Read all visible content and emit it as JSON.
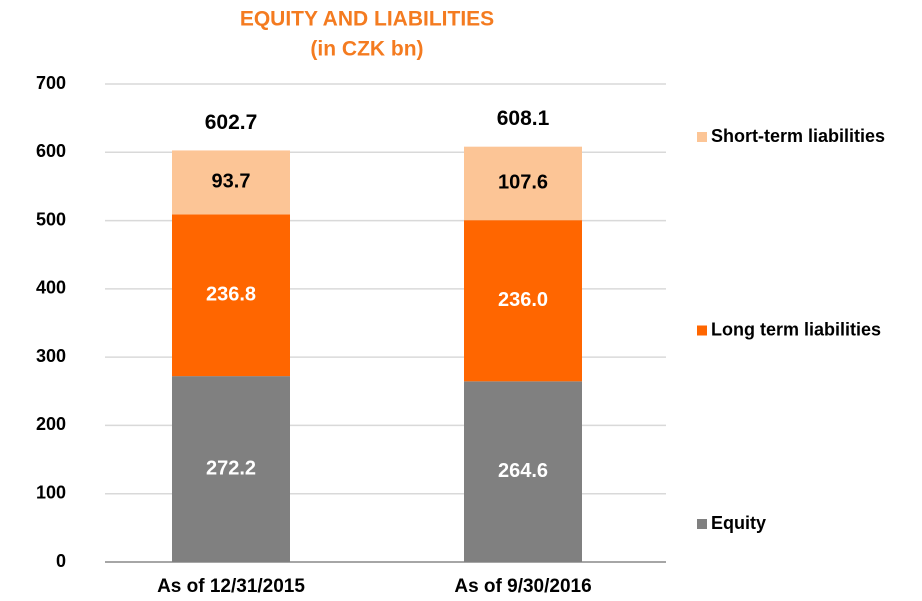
{
  "chart_data": {
    "type": "stacked_bar",
    "title": "EQUITY AND LIABILITIES",
    "subtitle": "(in CZK bn)",
    "categories": [
      "As of 12/31/2015",
      "As of 9/30/2016"
    ],
    "series": [
      {
        "name": "Equity",
        "color": "#808080",
        "label_color": "#ffffff",
        "values": [
          272.2,
          264.6
        ],
        "value_labels": [
          "272.2",
          "264.6"
        ]
      },
      {
        "name": "Long term liabilities",
        "color": "#ff6600",
        "label_color": "#ffffff",
        "values": [
          236.8,
          236.0
        ],
        "value_labels": [
          "236.8",
          "236.0"
        ]
      },
      {
        "name": "Short-term liabilities",
        "color": "#fcc596",
        "label_color": "#000000",
        "values": [
          93.7,
          107.6
        ],
        "value_labels": [
          "93.7",
          "107.6"
        ]
      }
    ],
    "totals": [
      602.7,
      608.1
    ],
    "ylim": [
      0,
      700
    ],
    "yticks": [
      0,
      100,
      200,
      300,
      400,
      500,
      600,
      700
    ],
    "grid": true,
    "legend": "right"
  }
}
